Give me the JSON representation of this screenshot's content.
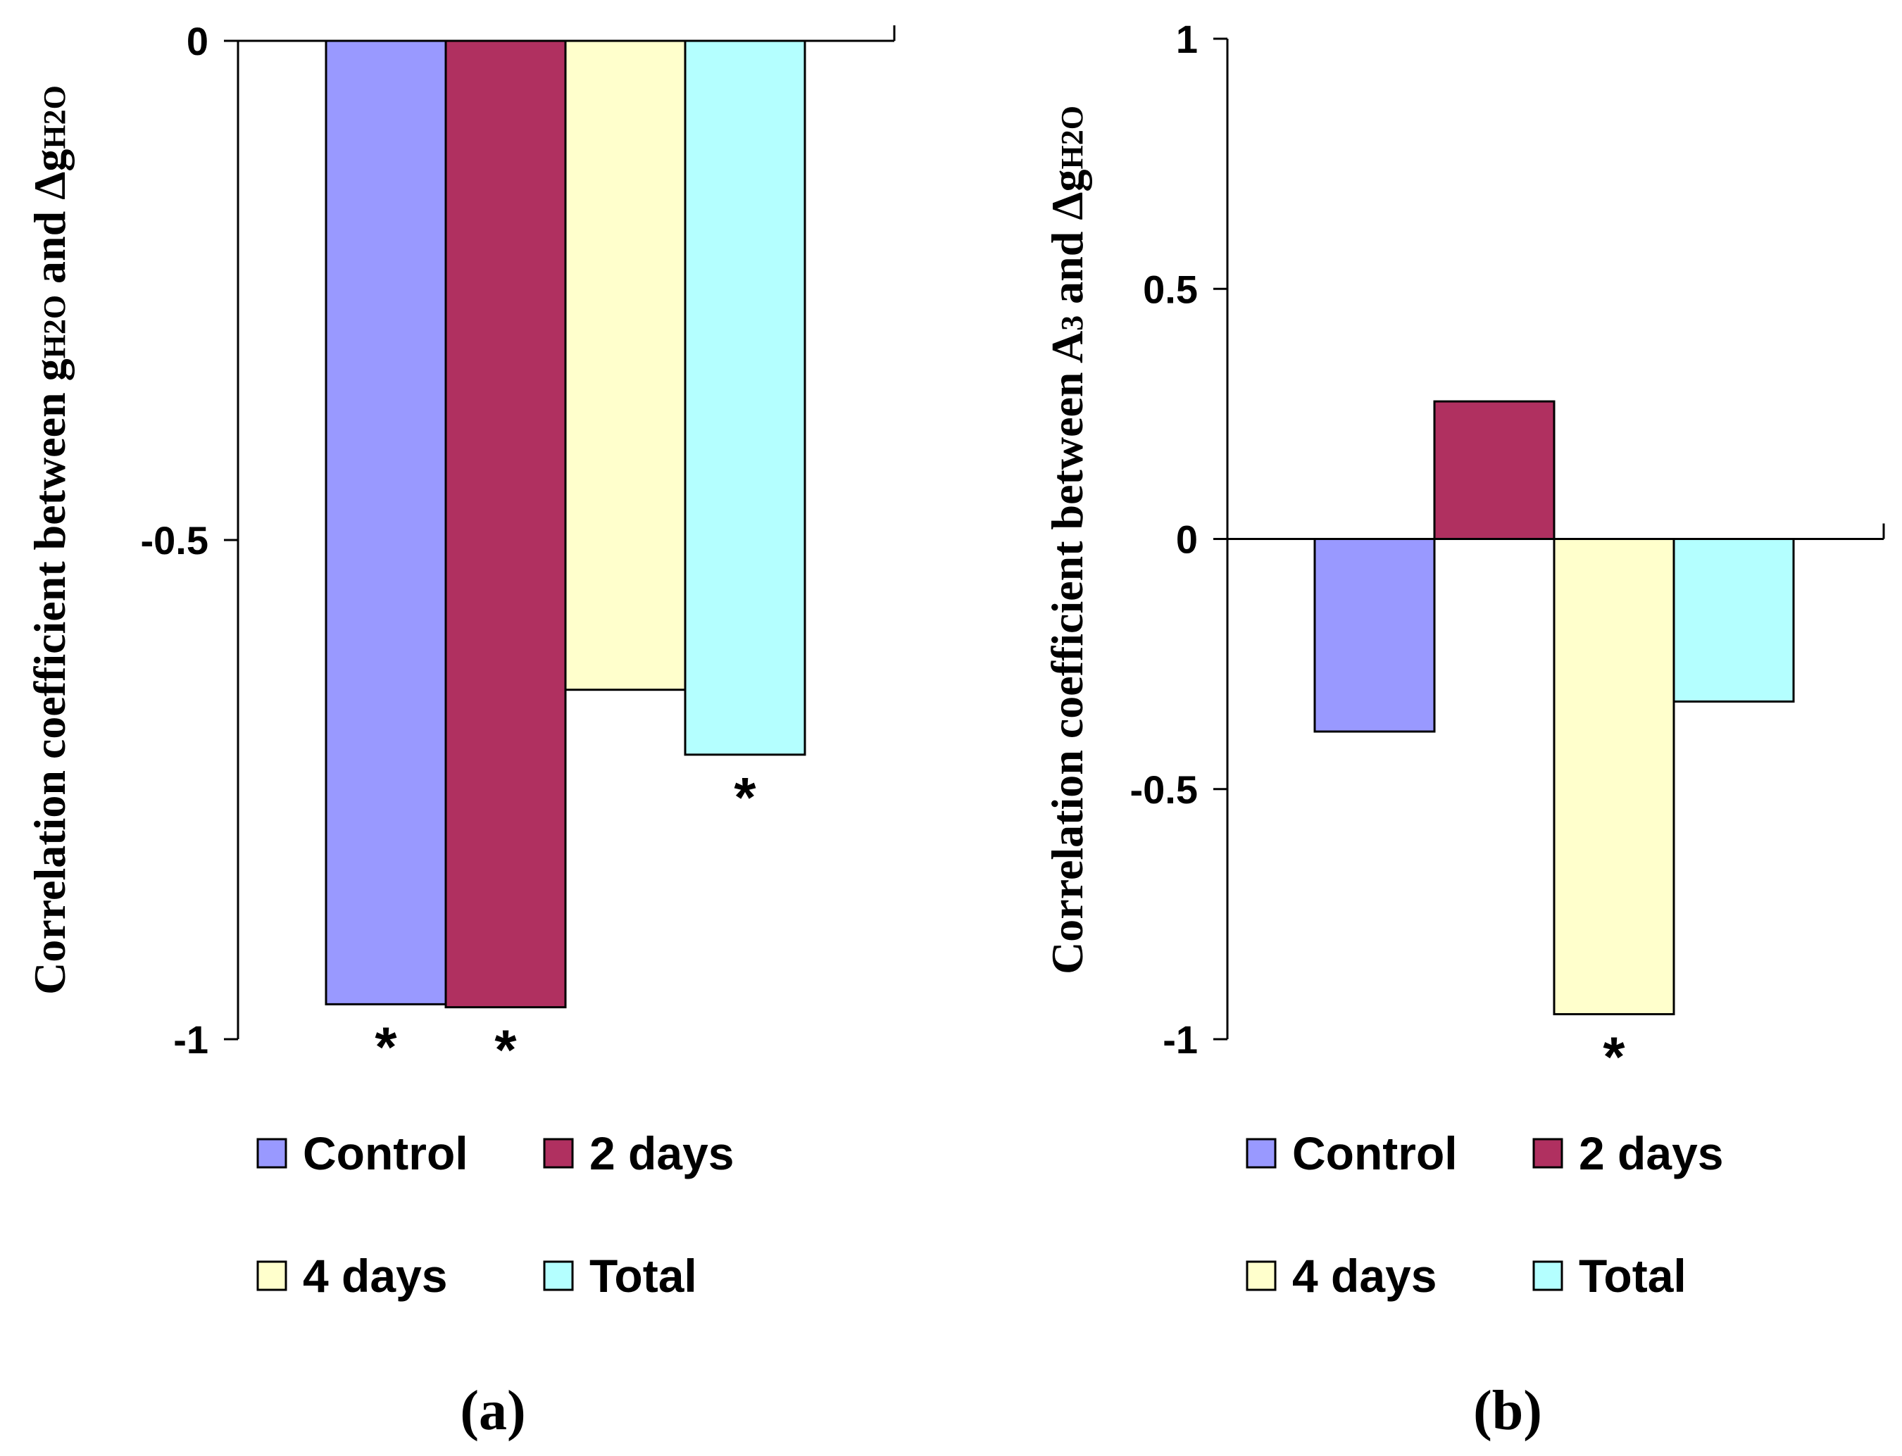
{
  "series_colors": {
    "Control": "#9999ff",
    "2 days": "#b03060",
    "4 days": "#ffffcc",
    "Total": "#b4ffff"
  },
  "chart_data": [
    {
      "type": "bar",
      "panel_label": "(a)",
      "categories": [
        "Control",
        "2 days",
        "4 days",
        "Total"
      ],
      "values": [
        -0.965,
        -0.968,
        -0.65,
        -0.715
      ],
      "significant": [
        true,
        true,
        false,
        true
      ],
      "significance_marker": "*",
      "ylim": [
        -1,
        0
      ],
      "yticks": [
        0,
        -0.5,
        -1
      ],
      "ytick_labels": [
        "0",
        "-0.5",
        "-1"
      ],
      "ylabel_parts": [
        {
          "text": "Correlation coefficient between g",
          "sub": false
        },
        {
          "text": "H2O",
          "sub": true
        },
        {
          "text": " and Δg",
          "sub": false
        },
        {
          "text": "H2O",
          "sub": true
        }
      ],
      "legend": [
        "Control",
        "2 days",
        "4 days",
        "Total"
      ]
    },
    {
      "type": "bar",
      "panel_label": "(b)",
      "categories": [
        "Control",
        "2 days",
        "4 days",
        "Total"
      ],
      "values": [
        -0.385,
        0.275,
        -0.95,
        -0.325
      ],
      "significant": [
        false,
        false,
        true,
        false
      ],
      "significance_marker": "*",
      "ylim": [
        -1,
        1
      ],
      "yticks": [
        1,
        0.5,
        0,
        -0.5,
        -1
      ],
      "ytick_labels": [
        "1",
        "0.5",
        "0",
        "-0.5",
        "-1"
      ],
      "ylabel_parts": [
        {
          "text": "Correlation coefficient between A",
          "sub": false
        },
        {
          "text": "3",
          "sub": true
        },
        {
          "text": " and Δg",
          "sub": false
        },
        {
          "text": "H2O",
          "sub": true
        }
      ],
      "legend": [
        "Control",
        "2 days",
        "4 days",
        "Total"
      ]
    }
  ]
}
